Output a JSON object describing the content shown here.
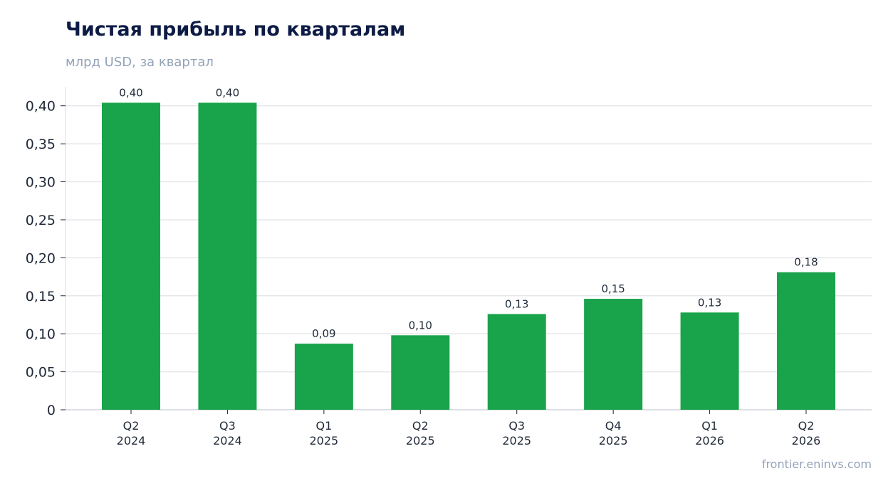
{
  "title": "Чистая прибыль по кварталам",
  "subtitle": "млрд USD, за квартал",
  "source": "frontier.eninvs.com",
  "colors": {
    "bar": "#19a34a",
    "grid": "#e5e7eb",
    "axis": "#d1d5db",
    "title": "#0d1b45",
    "muted": "#94a3b8",
    "text": "#1f2937"
  },
  "chart_data": {
    "type": "bar",
    "title": "Чистая прибыль по кварталам",
    "subtitle": "млрд USD, за квартал",
    "xlabel": "",
    "ylabel": "",
    "categories": [
      [
        "Q2",
        "2024"
      ],
      [
        "Q3",
        "2024"
      ],
      [
        "Q1",
        "2025"
      ],
      [
        "Q2",
        "2025"
      ],
      [
        "Q3",
        "2025"
      ],
      [
        "Q4",
        "2025"
      ],
      [
        "Q1",
        "2026"
      ],
      [
        "Q2",
        "2026"
      ]
    ],
    "values": [
      0.404,
      0.404,
      0.087,
      0.098,
      0.126,
      0.146,
      0.128,
      0.181
    ],
    "value_labels": [
      "0,40",
      "0,40",
      "0,09",
      "0,10",
      "0,13",
      "0,15",
      "0,13",
      "0,18"
    ],
    "ylim": [
      0,
      0.425
    ],
    "yticks": [
      0,
      0.05,
      0.1,
      0.15,
      0.2,
      0.25,
      0.3,
      0.35,
      0.4
    ],
    "ytick_labels": [
      "0",
      "0,05",
      "0,10",
      "0,15",
      "0,20",
      "0,25",
      "0,30",
      "0,35",
      "0,40"
    ],
    "grid": true,
    "legend": "none"
  }
}
